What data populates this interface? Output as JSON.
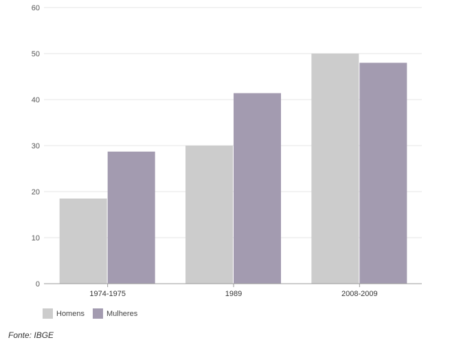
{
  "chart_data": {
    "type": "bar",
    "categories": [
      "1974-1975",
      "1989",
      "2008-2009"
    ],
    "series": [
      {
        "name": "Homens",
        "values": [
          18.5,
          30,
          50
        ],
        "color": "#cccccc"
      },
      {
        "name": "Mulheres",
        "values": [
          28.7,
          41.4,
          48
        ],
        "color": "#a39bb0"
      }
    ],
    "ylim": [
      0,
      60
    ],
    "yticks": [
      "0",
      "10",
      "20",
      "30",
      "40",
      "50",
      "60"
    ],
    "grid": true,
    "legend_position": "bottom-left",
    "title": "",
    "xlabel": "",
    "ylabel": ""
  },
  "legend": {
    "homens": "Homens",
    "mulheres": "Mulheres"
  },
  "source": "Fonte: IBGE"
}
